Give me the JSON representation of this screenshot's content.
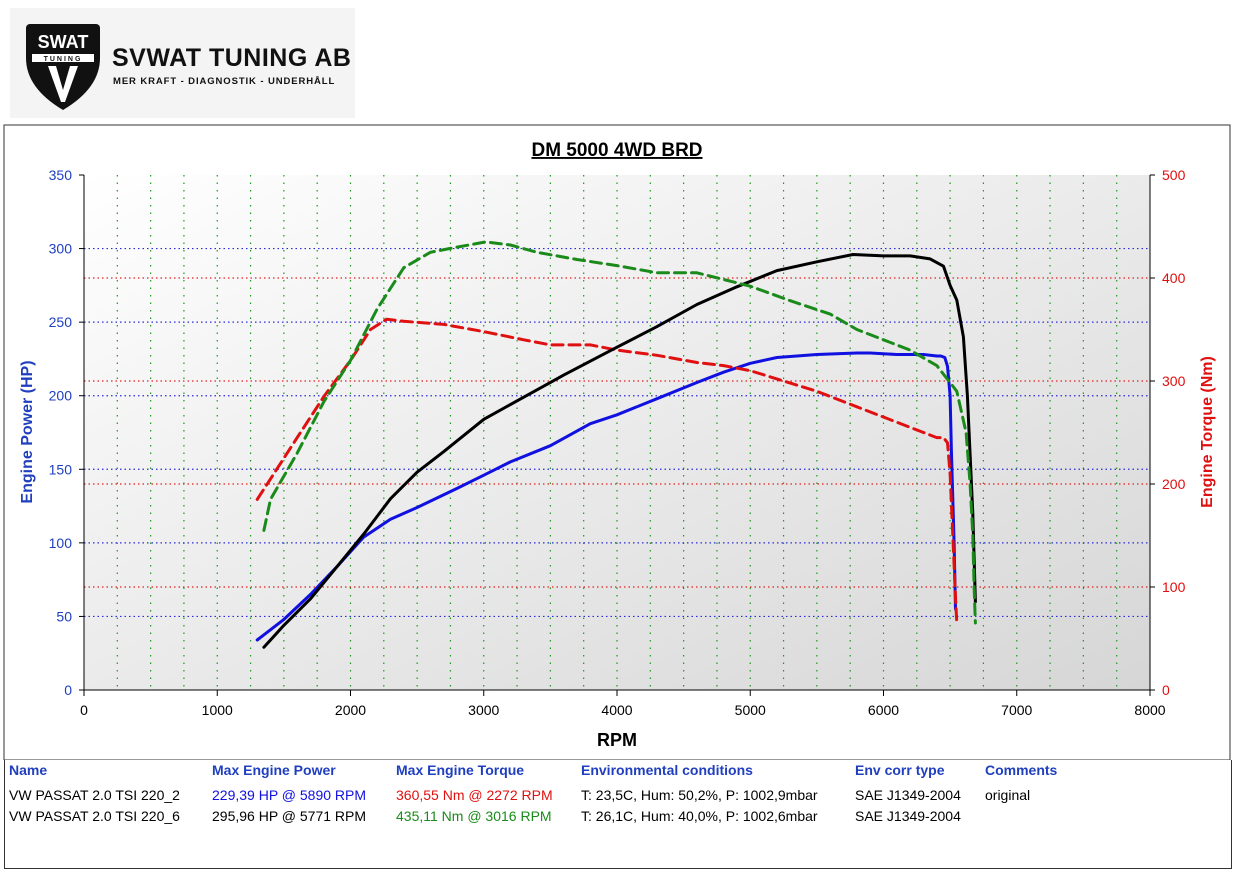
{
  "logo": {
    "badge": "SWAT",
    "badge_sub": "TUNING",
    "company": "SVWAT TUNING AB",
    "tagline": "MER KRAFT - DIAGNOSTIK - UNDERHÅLL"
  },
  "chart_data": {
    "type": "line",
    "title": "DM 5000 4WD BRD",
    "xlabel": "RPM",
    "ylabel_left": "Engine Power (HP)",
    "ylabel_right": "Engine Torque (Nm)",
    "xlim": [
      0,
      8000
    ],
    "ylim_left": [
      0,
      350
    ],
    "ylim_right": [
      0,
      500
    ],
    "x_ticks": [
      0,
      1000,
      2000,
      3000,
      4000,
      5000,
      6000,
      7000,
      8000
    ],
    "y_ticks_left": [
      0,
      50,
      100,
      150,
      200,
      250,
      300,
      350
    ],
    "y_ticks_right": [
      0,
      100,
      200,
      300,
      400,
      500
    ],
    "series": [
      {
        "name": "VW PASSAT 2.0 TSI 220_2",
        "quantity": "power",
        "axis": "left",
        "color": "#1010e0",
        "dash": "solid",
        "x": [
          1300,
          1500,
          1700,
          1900,
          2100,
          2300,
          2500,
          2800,
          3000,
          3200,
          3500,
          3800,
          4000,
          4300,
          4600,
          4800,
          5000,
          5200,
          5500,
          5800,
          5900,
          6100,
          6300,
          6400,
          6430,
          6460,
          6480,
          6500,
          6510,
          6530,
          6540
        ],
        "y": [
          34,
          48,
          65,
          84,
          104,
          116,
          124,
          137,
          146,
          155,
          166,
          181,
          187,
          198,
          209,
          216,
          222,
          226,
          228,
          229,
          229,
          228,
          228,
          227,
          227,
          226,
          220,
          200,
          160,
          100,
          55
        ]
      },
      {
        "name": "VW PASSAT 2.0 TSI 220_2",
        "quantity": "torque",
        "axis": "right",
        "color": "#e01010",
        "dash": "dashed",
        "x": [
          1300,
          1400,
          1600,
          1800,
          2000,
          2150,
          2272,
          2400,
          2700,
          3000,
          3300,
          3500,
          3800,
          4000,
          4300,
          4600,
          4800,
          5000,
          5200,
          5500,
          5800,
          6100,
          6300,
          6400,
          6450,
          6480,
          6500,
          6520,
          6540,
          6550
        ],
        "y": [
          185,
          205,
          245,
          285,
          320,
          350,
          360,
          358,
          355,
          348,
          340,
          335,
          335,
          330,
          325,
          318,
          315,
          310,
          302,
          290,
          275,
          260,
          250,
          245,
          245,
          240,
          210,
          150,
          90,
          65
        ]
      },
      {
        "name": "VW PASSAT 2.0 TSI 220_6",
        "quantity": "power",
        "axis": "left",
        "color": "#000000",
        "dash": "solid",
        "x": [
          1350,
          1500,
          1700,
          1900,
          2100,
          2300,
          2500,
          2700,
          3000,
          3300,
          3600,
          4000,
          4300,
          4600,
          4900,
          5200,
          5500,
          5771,
          6000,
          6200,
          6350,
          6450,
          6500,
          6550,
          6600,
          6630,
          6650,
          6670,
          6680,
          6690
        ],
        "y": [
          29,
          44,
          62,
          84,
          106,
          130,
          148,
          162,
          184,
          199,
          214,
          233,
          247,
          262,
          274,
          285,
          291,
          296,
          295,
          295,
          293,
          288,
          275,
          265,
          240,
          200,
          160,
          120,
          90,
          60
        ]
      },
      {
        "name": "VW PASSAT 2.0 TSI 220_6",
        "quantity": "torque",
        "axis": "right",
        "color": "#1a8a1a",
        "dash": "dashed",
        "x": [
          1350,
          1400,
          1600,
          1800,
          2000,
          2200,
          2400,
          2600,
          2800,
          3016,
          3200,
          3400,
          3700,
          4000,
          4300,
          4600,
          5000,
          5300,
          5600,
          5800,
          6000,
          6200,
          6400,
          6550,
          6620,
          6650,
          6670,
          6680,
          6690
        ],
        "y": [
          155,
          185,
          230,
          280,
          320,
          370,
          410,
          425,
          430,
          435,
          432,
          425,
          418,
          412,
          405,
          405,
          392,
          378,
          365,
          350,
          340,
          330,
          315,
          290,
          250,
          200,
          150,
          100,
          65
        ]
      }
    ]
  },
  "legend_table": {
    "headers": [
      "Name",
      "Max Engine Power",
      "Max Engine Torque",
      "Environmental conditions",
      "Env corr type",
      "Comments"
    ],
    "rows": [
      {
        "name": "VW PASSAT 2.0 TSI 220_2",
        "power": "229,39 HP @ 5890 RPM",
        "torque": "360,55 Nm @ 2272 RPM",
        "env": "T: 23,5C, Hum: 50,2%, P: 1002,9mbar",
        "corr": "SAE J1349-2004",
        "comment": "original",
        "power_color": "#1010e0",
        "torque_color": "#e01010"
      },
      {
        "name": "VW PASSAT 2.0 TSI 220_6",
        "power": "295,96 HP @ 5771 RPM",
        "torque": "435,11 Nm @ 3016 RPM",
        "env": "T: 26,1C, Hum: 40,0%, P: 1002,6mbar",
        "corr": "SAE J1349-2004",
        "comment": "",
        "power_color": "#000000",
        "torque_color": "#1a8a1a"
      }
    ]
  }
}
